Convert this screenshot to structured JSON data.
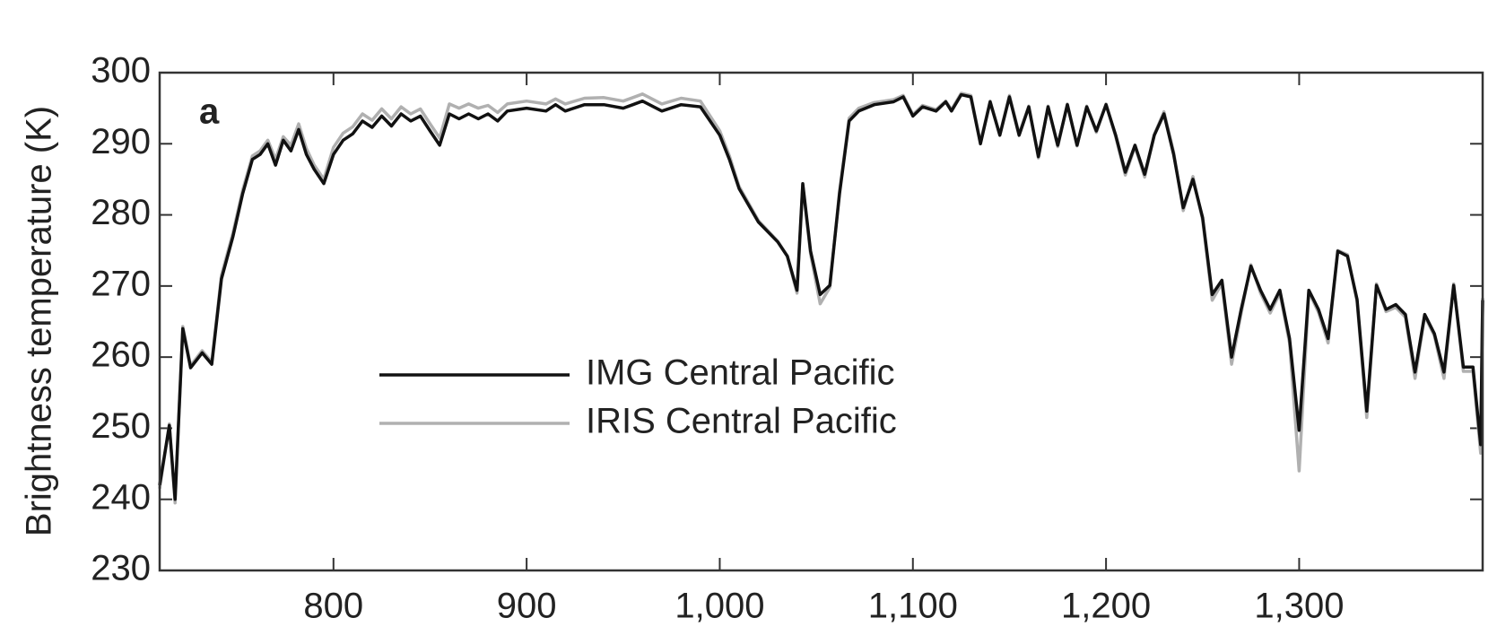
{
  "chart_data": {
    "type": "line",
    "y_label": "Brightness temperature (K)",
    "annotation": "a",
    "legend": "center left",
    "grid": false,
    "xlim": [
      710,
      1395
    ],
    "ylim": [
      230,
      300
    ],
    "xticks": [
      800,
      900,
      {
        "value": 1000,
        "label": "1,000"
      },
      {
        "value": 1100,
        "label": "1,100"
      },
      {
        "value": 1200,
        "label": "1,200"
      },
      {
        "value": 1300,
        "label": "1,300"
      }
    ],
    "yticks": [
      230,
      240,
      250,
      260,
      270,
      280,
      290,
      300
    ],
    "x": [
      710,
      715,
      718,
      722,
      726,
      732,
      737,
      742,
      748,
      753,
      758,
      762,
      766,
      770,
      774,
      778,
      782,
      786,
      790,
      795,
      800,
      805,
      810,
      815,
      820,
      825,
      830,
      835,
      840,
      845,
      850,
      855,
      860,
      865,
      870,
      875,
      880,
      885,
      890,
      900,
      910,
      915,
      920,
      930,
      940,
      950,
      955,
      960,
      970,
      980,
      990,
      1000,
      1005,
      1010,
      1020,
      1030,
      1035,
      1040,
      1043,
      1047,
      1052,
      1057,
      1062,
      1067,
      1072,
      1080,
      1090,
      1095,
      1100,
      1105,
      1112,
      1117,
      1120,
      1125,
      1130,
      1135,
      1140,
      1145,
      1150,
      1155,
      1160,
      1165,
      1170,
      1175,
      1180,
      1185,
      1190,
      1195,
      1200,
      1205,
      1210,
      1215,
      1220,
      1225,
      1230,
      1235,
      1240,
      1245,
      1250,
      1255,
      1260,
      1265,
      1270,
      1275,
      1280,
      1285,
      1290,
      1295,
      1300,
      1305,
      1310,
      1315,
      1320,
      1325,
      1330,
      1335,
      1340,
      1345,
      1350,
      1355,
      1360,
      1365,
      1370,
      1375,
      1380,
      1385,
      1390,
      1394,
      1395
    ],
    "series": [
      {
        "name": "IMG Central Pacific",
        "color": "#111111",
        "values": [
          242,
          250.4,
          240,
          264,
          258.5,
          260.6,
          259,
          271,
          277,
          283,
          287.8,
          288.5,
          290,
          287,
          290.5,
          289,
          292,
          288.5,
          286.4,
          284.4,
          288.5,
          290.5,
          291.4,
          293.2,
          292.3,
          293.9,
          292.5,
          294.2,
          293.2,
          293.9,
          291.8,
          289.8,
          294.2,
          293.5,
          294.2,
          293.5,
          294.2,
          293.2,
          294.6,
          295,
          294.6,
          295.5,
          294.6,
          295.5,
          295.5,
          295,
          295.5,
          296,
          294.6,
          295.5,
          295.2,
          291.2,
          287.8,
          283.7,
          279,
          276.2,
          274.2,
          269.4,
          284.4,
          274.9,
          268.8,
          270.1,
          283,
          293.2,
          294.6,
          295.5,
          295.9,
          296.6,
          293.9,
          295.2,
          294.6,
          295.9,
          294.6,
          296.9,
          296.6,
          290,
          295.9,
          291.2,
          296.6,
          291.2,
          295.2,
          288.2,
          295.2,
          289.8,
          295.5,
          289.8,
          295.2,
          291.8,
          295.5,
          291.2,
          286,
          289.8,
          285.7,
          291.2,
          294.2,
          288.5,
          281,
          285,
          279.6,
          268.8,
          270.8,
          260,
          266.7,
          272.8,
          269.4,
          266.7,
          269.4,
          262.6,
          249.7,
          269.4,
          266.7,
          262.6,
          274.9,
          274.2,
          268.1,
          252.4,
          270.1,
          266.7,
          267.4,
          266,
          257.9,
          266,
          263.3,
          257.9,
          270.1,
          258.6,
          258.6,
          247.7,
          268
        ]
      },
      {
        "name": "IRIS Central Pacific",
        "color": "#b0b0b0",
        "values": [
          241.5,
          250.6,
          239.5,
          264.3,
          258.8,
          260.9,
          259.3,
          271.5,
          277.5,
          283.5,
          288.3,
          289,
          290.5,
          287.8,
          291,
          289.8,
          292.8,
          289.3,
          287,
          285,
          289.5,
          291.5,
          292.4,
          294.2,
          293.3,
          294.9,
          293.5,
          295.2,
          294.2,
          294.9,
          292.8,
          290.8,
          295.6,
          295,
          295.6,
          295,
          295.4,
          294.4,
          295.6,
          296,
          295.6,
          296.3,
          295.6,
          296.4,
          296.5,
          296,
          296.5,
          297,
          295.6,
          296.4,
          296,
          291.8,
          288.3,
          284,
          279.2,
          276.3,
          274.2,
          269,
          284.2,
          274.5,
          267.5,
          269.8,
          283.3,
          293.6,
          295,
          295.8,
          296.2,
          296.8,
          294.1,
          295.4,
          294.8,
          296,
          294.8,
          297.1,
          296.8,
          290.2,
          296,
          291.3,
          296.8,
          291.4,
          295.3,
          288,
          295.3,
          289.6,
          295.6,
          289.7,
          295.3,
          291.6,
          295.6,
          291,
          285.6,
          289.6,
          285.3,
          291.3,
          294.5,
          288.8,
          280.6,
          285.4,
          279.3,
          268,
          270.4,
          259,
          266.2,
          273,
          269,
          266.2,
          269,
          262,
          244,
          269.2,
          266.3,
          262,
          275,
          274.4,
          267.8,
          251.5,
          270.3,
          266.4,
          267,
          265.6,
          257,
          265.8,
          263,
          257,
          270.3,
          258,
          258,
          246.5,
          268.3
        ]
      }
    ]
  }
}
